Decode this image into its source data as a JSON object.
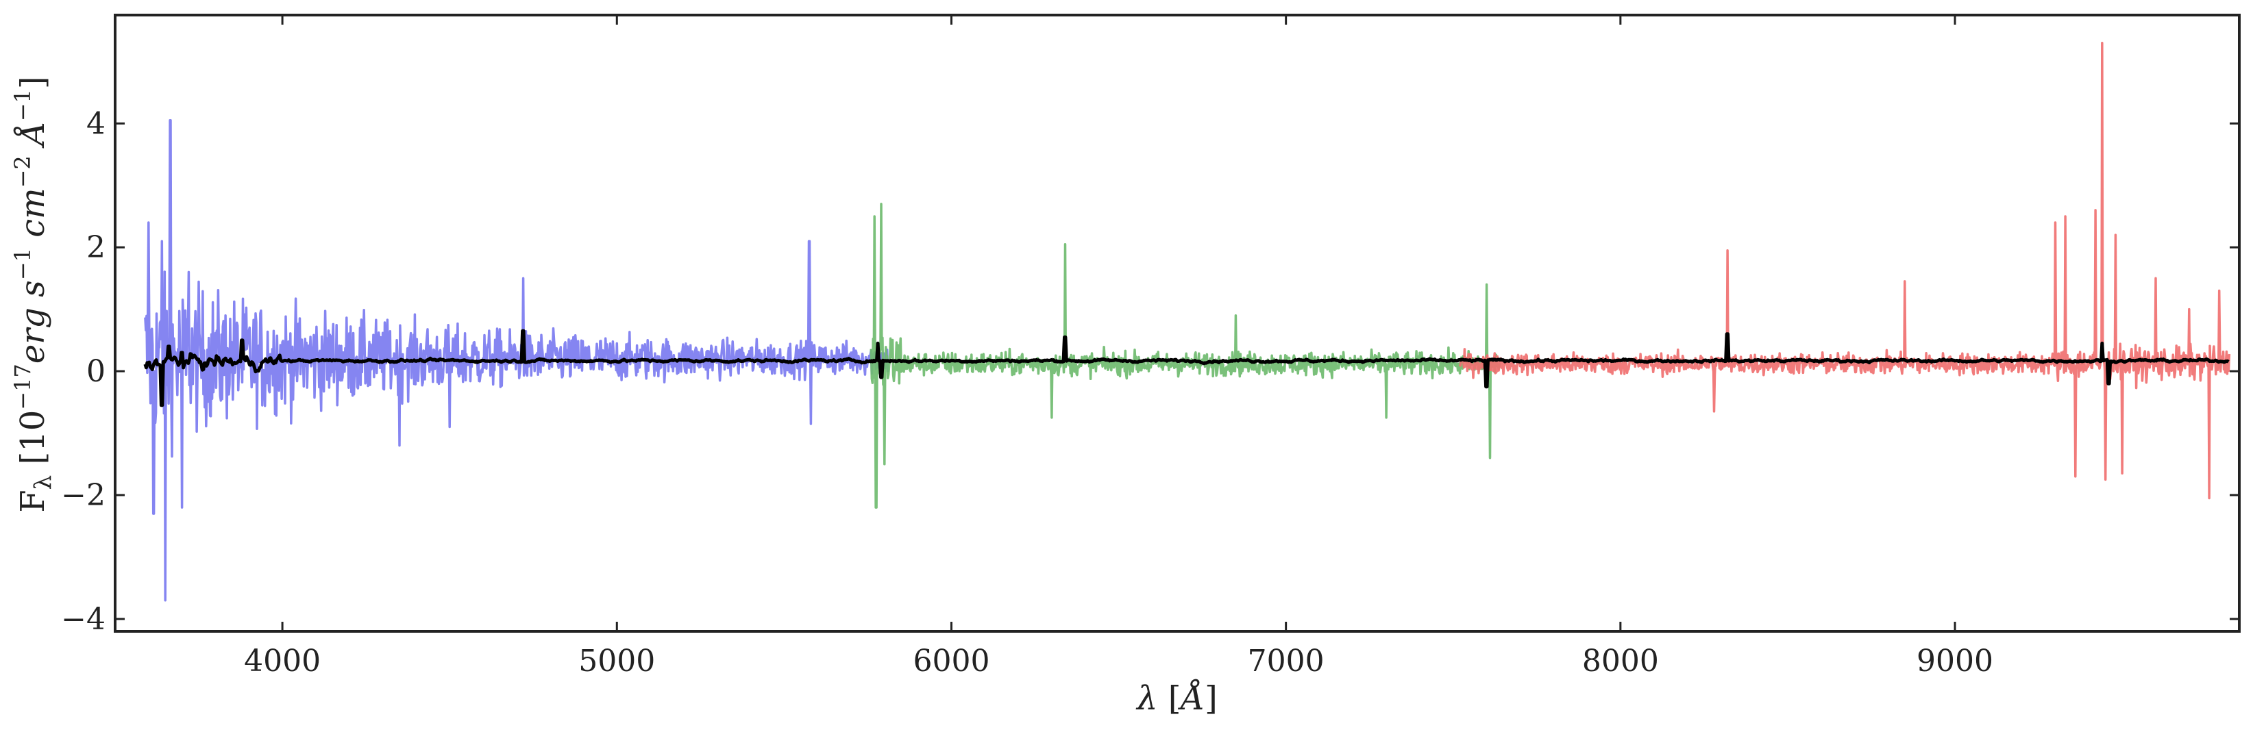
{
  "chart_data": {
    "type": "line",
    "title": "",
    "xlabel": {
      "lambda": "λ",
      "rest": " [",
      "unit": "Å",
      "close": "]"
    },
    "ylabel": {
      "F": "F",
      "lam": "λ",
      "open": " [10",
      "exp1": "−17",
      "erg": "erg s",
      "exp2": "−1",
      "cm": " cm",
      "exp3": "−2",
      "ang": " Å",
      "exp4": "−1",
      "close": "]"
    },
    "xlim": [
      3500,
      9850
    ],
    "ylim": [
      -4.2,
      5.75
    ],
    "xticks": [
      4000,
      5000,
      6000,
      7000,
      8000,
      9000
    ],
    "yticks": [
      -4,
      -2,
      0,
      2,
      4
    ],
    "ytick_labels": [
      "−4",
      "−2",
      "0",
      "2",
      "4"
    ],
    "grid": false,
    "legend": "none",
    "series": [
      {
        "color": "#7b7bf0",
        "x_range": [
          3590,
          5810
        ],
        "spikes": [
          [
            3600,
            2.4
          ],
          [
            3615,
            -2.3
          ],
          [
            3650,
            -3.7
          ],
          [
            3665,
            4.05
          ],
          [
            3640,
            2.1
          ],
          [
            3700,
            -2.2
          ],
          [
            3720,
            1.6
          ],
          [
            4720,
            1.5
          ],
          [
            5575,
            2.1
          ],
          [
            5580,
            -0.85
          ],
          [
            4350,
            -1.2
          ],
          [
            4500,
            -0.9
          ]
        ]
      },
      {
        "color": "#6fbb6f",
        "x_range": [
          5760,
          7640
        ],
        "spikes": [
          [
            5770,
            2.5
          ],
          [
            5775,
            -2.2
          ],
          [
            5790,
            2.7
          ],
          [
            5800,
            -1.5
          ],
          [
            6340,
            2.05
          ],
          [
            6300,
            -0.75
          ],
          [
            7600,
            1.4
          ],
          [
            7610,
            -1.4
          ],
          [
            6850,
            0.9
          ],
          [
            7300,
            -0.75
          ]
        ]
      },
      {
        "color": "#f07070",
        "x_range": [
          7520,
          9820
        ],
        "spikes": [
          [
            8320,
            1.95
          ],
          [
            8280,
            -0.65
          ],
          [
            8850,
            1.45
          ],
          [
            9300,
            2.4
          ],
          [
            9330,
            2.5
          ],
          [
            9360,
            -1.7
          ],
          [
            9420,
            2.6
          ],
          [
            9440,
            5.3
          ],
          [
            9450,
            -1.75
          ],
          [
            9480,
            2.2
          ],
          [
            9500,
            -1.65
          ],
          [
            9600,
            1.5
          ],
          [
            9700,
            1.0
          ],
          [
            9760,
            -2.05
          ],
          [
            9790,
            1.3
          ]
        ]
      },
      {
        "color": "#000000",
        "x_range": [
          3590,
          9820
        ],
        "spikes": [
          [
            3640,
            -0.55
          ],
          [
            3660,
            0.4
          ],
          [
            3700,
            0.3
          ],
          [
            3880,
            0.5
          ],
          [
            4720,
            0.65
          ],
          [
            5780,
            0.45
          ],
          [
            5790,
            -0.1
          ],
          [
            6340,
            0.55
          ],
          [
            7600,
            -0.25
          ],
          [
            8320,
            0.6
          ],
          [
            9440,
            0.45
          ],
          [
            9460,
            -0.2
          ]
        ]
      }
    ]
  }
}
